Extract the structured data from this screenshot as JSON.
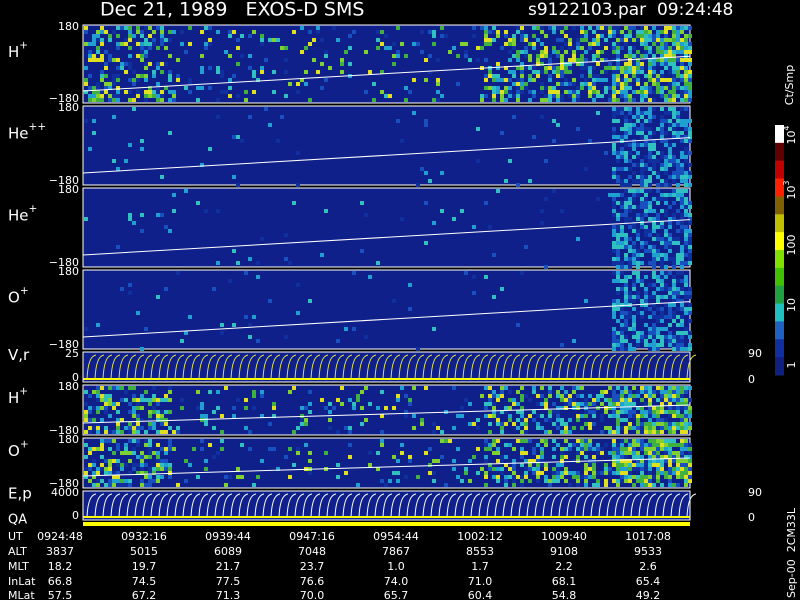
{
  "header": {
    "title": "Dec 21, 1989   EXOS-D SMS",
    "file": "s9122103.par  09:24:48"
  },
  "panels": [
    {
      "label": "H",
      "sup": "+",
      "top": "180",
      "bottom": "−180"
    },
    {
      "label": "He",
      "sup": "++",
      "top": "180",
      "bottom": "−180"
    },
    {
      "label": "He",
      "sup": "+",
      "top": "180",
      "bottom": "−180"
    },
    {
      "label": "O",
      "sup": "+",
      "top": "180",
      "bottom": "−180"
    },
    {
      "label": "V,r",
      "top": "25",
      "bottom": "0",
      "right_top": "90",
      "right_bottom": "0"
    },
    {
      "label": "H",
      "sup": "+",
      "top": "180",
      "bottom": "−180"
    },
    {
      "label": "O",
      "sup": "+",
      "top": "180",
      "bottom": "−180"
    },
    {
      "label": "E,p",
      "top": "4000",
      "bottom": "0",
      "right_top": "90",
      "right_bottom": "0",
      "extra": "QA"
    }
  ],
  "colorbar": {
    "title": "Ct/Smp",
    "labels": [
      {
        "base": "10",
        "sup": "4"
      },
      {
        "base": "10",
        "sup": "3"
      },
      {
        "base": "100"
      },
      {
        "base": "10"
      },
      {
        "base": "1"
      }
    ]
  },
  "footer": "Sep-00  2CM33L",
  "table": {
    "rows": [
      {
        "label": "UT",
        "values": [
          "0924:48",
          "0932:16",
          "0939:44",
          "0947:16",
          "0954:44",
          "1002:12",
          "1009:40",
          "1017:08"
        ]
      },
      {
        "label": "ALT",
        "values": [
          "3837",
          "5015",
          "6089",
          "7048",
          "7867",
          "8553",
          "9108",
          "9533"
        ]
      },
      {
        "label": "MLT",
        "values": [
          "18.2",
          "19.7",
          "21.7",
          "23.7",
          "1.0",
          "1.7",
          "2.2",
          "2.6"
        ]
      },
      {
        "label": "InLat",
        "values": [
          "66.8",
          "74.5",
          "77.5",
          "76.6",
          "74.0",
          "71.0",
          "68.1",
          "65.4"
        ]
      },
      {
        "label": "MLat",
        "values": [
          "57.5",
          "67.2",
          "71.3",
          "70.0",
          "65.7",
          "60.4",
          "54.8",
          "49.2"
        ]
      }
    ]
  }
}
